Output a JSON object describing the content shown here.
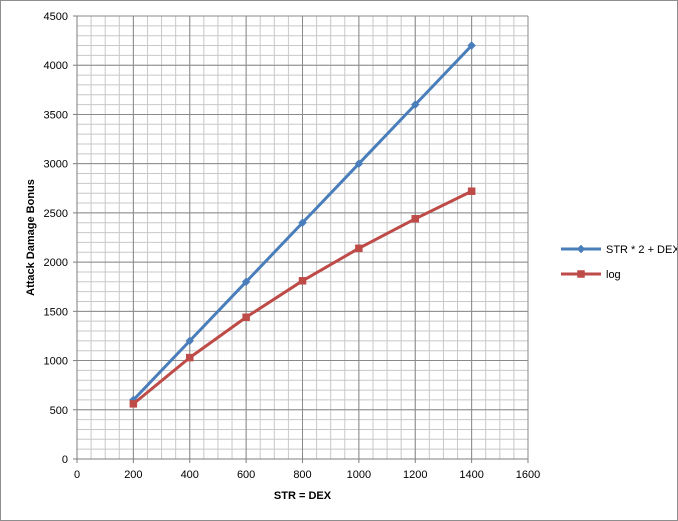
{
  "chart_data": {
    "type": "line",
    "xlabel": "STR = DEX",
    "ylabel": "Attack Damage Bonus",
    "xlim": [
      0,
      1600
    ],
    "ylim": [
      0,
      4500
    ],
    "x_ticks": [
      0,
      200,
      400,
      600,
      800,
      1000,
      1200,
      1400,
      1600
    ],
    "y_ticks": [
      0,
      500,
      1000,
      1500,
      2000,
      2500,
      3000,
      3500,
      4000,
      4500
    ],
    "grid": true,
    "legend_position": "right",
    "x": [
      200,
      400,
      600,
      800,
      1000,
      1200,
      1400
    ],
    "series": [
      {
        "name": "STR * 2 + DEX",
        "color": "#4a7ebb",
        "marker": "diamond",
        "values": [
          600,
          1200,
          1800,
          2400,
          3000,
          3600,
          4200
        ]
      },
      {
        "name": "log",
        "color": "#be4b48",
        "marker": "square",
        "values": [
          560,
          1030,
          1440,
          1810,
          2140,
          2440,
          2720
        ]
      }
    ]
  }
}
